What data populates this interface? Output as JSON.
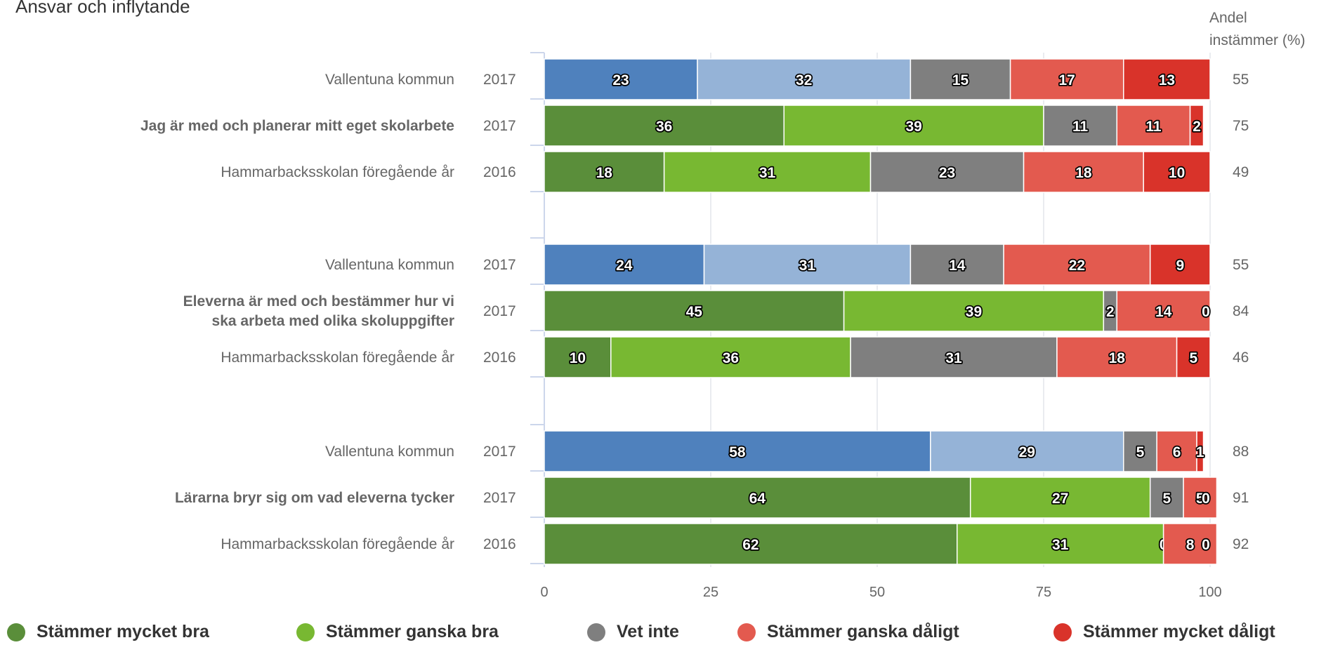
{
  "chart_data": {
    "type": "bar",
    "orientation": "horizontal-stacked",
    "title": "Ansvar och inflytande",
    "right_header": [
      "Andel",
      "instämmer (%)"
    ],
    "xlim": [
      0,
      100
    ],
    "xticks": [
      "0",
      "25",
      "50",
      "75",
      "100"
    ],
    "grid": true,
    "legend_position": "bottom",
    "series_names": [
      "Stämmer mycket bra",
      "Stämmer ganska bra",
      "Vet inte",
      "Stämmer ganska dåligt",
      "Stämmer mycket dåligt"
    ],
    "colors": {
      "kommun": [
        "#4f81bd",
        "#95b3d7",
        "#7f7f7f",
        "#e35a4f",
        "#d9332a"
      ],
      "school": [
        "#5a8e3a",
        "#78b832",
        "#7f7f7f",
        "#e35a4f",
        "#d9332a"
      ]
    },
    "groups": [
      {
        "question": [
          "Jag är med och planerar mitt eget skolarbete"
        ],
        "rows": [
          {
            "label": "Vallentuna kommun",
            "year": "2017",
            "palette": "kommun",
            "bold": false,
            "values": [
              23,
              32,
              15,
              17,
              13
            ],
            "agree": 55
          },
          {
            "label": "",
            "year": "2017",
            "palette": "school",
            "bold": true,
            "values": [
              36,
              39,
              11,
              11,
              2
            ],
            "agree": 75
          },
          {
            "label": "Hammarbacksskolan föregående år",
            "year": "2016",
            "palette": "school",
            "bold": false,
            "values": [
              18,
              31,
              23,
              18,
              10
            ],
            "agree": 49
          }
        ]
      },
      {
        "question": [
          "Eleverna är med och bestämmer hur vi",
          "ska arbeta med olika skoluppgifter"
        ],
        "rows": [
          {
            "label": "Vallentuna kommun",
            "year": "2017",
            "palette": "kommun",
            "bold": false,
            "values": [
              24,
              31,
              14,
              22,
              9
            ],
            "agree": 55
          },
          {
            "label": "",
            "year": "2017",
            "palette": "school",
            "bold": true,
            "values": [
              45,
              39,
              2,
              14,
              0
            ],
            "agree": 84
          },
          {
            "label": "Hammarbacksskolan föregående år",
            "year": "2016",
            "palette": "school",
            "bold": false,
            "values": [
              10,
              36,
              31,
              18,
              5
            ],
            "agree": 46
          }
        ]
      },
      {
        "question": [
          "Lärarna bryr sig om vad eleverna tycker"
        ],
        "rows": [
          {
            "label": "Vallentuna kommun",
            "year": "2017",
            "palette": "kommun",
            "bold": false,
            "values": [
              58,
              29,
              5,
              6,
              1
            ],
            "agree": 88
          },
          {
            "label": "",
            "year": "2017",
            "palette": "school",
            "bold": true,
            "values": [
              64,
              27,
              5,
              5,
              0
            ],
            "agree": 91
          },
          {
            "label": "Hammarbacksskolan föregående år",
            "year": "2016",
            "palette": "school",
            "bold": false,
            "values": [
              62,
              31,
              0,
              8,
              0
            ],
            "agree": 92
          }
        ]
      }
    ],
    "legend": [
      {
        "label": "Stämmer mycket bra",
        "color": "#5a8e3a"
      },
      {
        "label": "Stämmer ganska bra",
        "color": "#78b832"
      },
      {
        "label": "Vet inte",
        "color": "#7f7f7f"
      },
      {
        "label": "Stämmer ganska dåligt",
        "color": "#e35a4f"
      },
      {
        "label": "Stämmer mycket dåligt",
        "color": "#d9332a"
      }
    ]
  }
}
